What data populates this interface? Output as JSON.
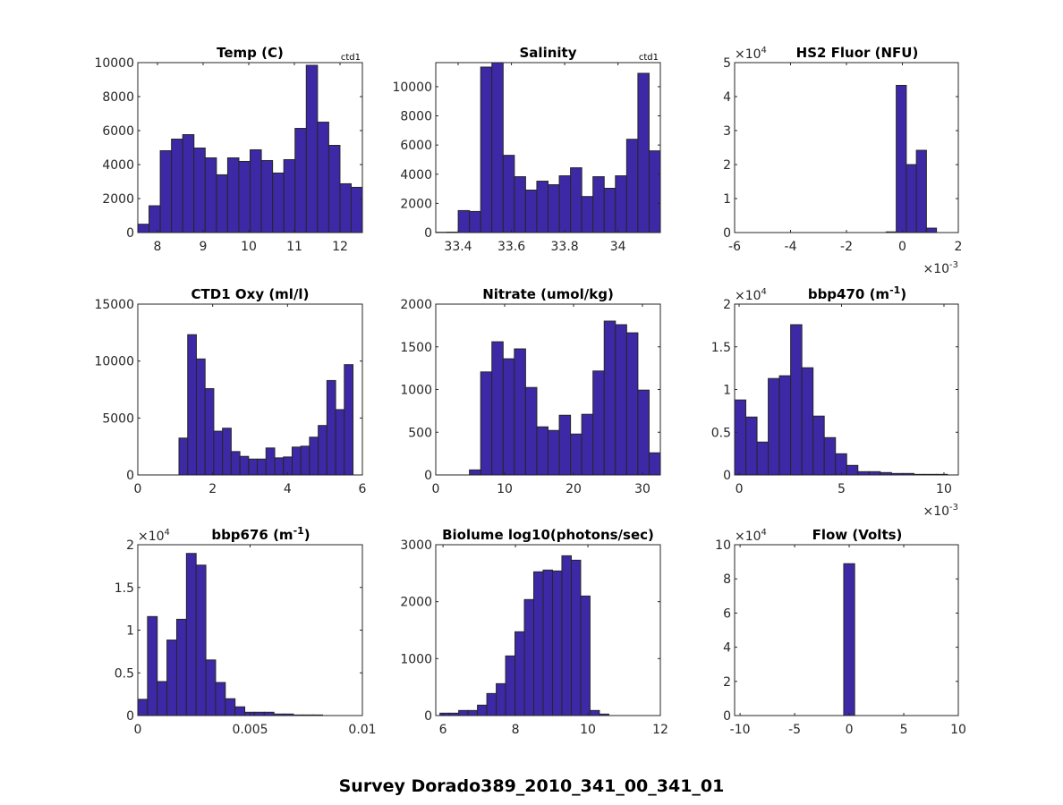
{
  "figure": {
    "suptitle": "Survey Dorado389_2010_341_00_341_01",
    "bar_color": "#3d28a6",
    "edge_color": "#262626",
    "axis_color": "#262626"
  },
  "chart_data": [
    {
      "type": "bar",
      "title": "Temp (C)",
      "corner_label": "ctd1",
      "xlim": [
        7.569,
        12.49
      ],
      "ylim": [
        0,
        10000
      ],
      "xticks": [
        8,
        9,
        10,
        11,
        12
      ],
      "xtick_labels": [
        "8",
        "9",
        "10",
        "11",
        "12"
      ],
      "yticks": [
        0,
        2000,
        4000,
        6000,
        8000,
        10000
      ],
      "ytick_labels": [
        "0",
        "2000",
        "4000",
        "6000",
        "8000",
        "10000"
      ],
      "y_exponent": "",
      "x_exponent": "",
      "bin_start": 7.569,
      "bin_width": 0.2461,
      "values": [
        490,
        1576,
        4816,
        5499,
        5762,
        4974,
        4396,
        3398,
        4396,
        4186,
        4869,
        4238,
        3503,
        4291,
        6130,
        9842,
        6497,
        5131,
        2872,
        2662
      ]
    },
    {
      "type": "bar",
      "title": "Salinity",
      "corner_label": "ctd1",
      "xlim": [
        33.316,
        34.159
      ],
      "ylim": [
        0,
        11650
      ],
      "xticks": [
        33.4,
        33.6,
        33.8,
        34
      ],
      "xtick_labels": [
        "33.4",
        "33.6",
        "33.8",
        "34"
      ],
      "yticks": [
        0,
        2000,
        4000,
        6000,
        8000,
        10000
      ],
      "ytick_labels": [
        "0",
        "2000",
        "4000",
        "6000",
        "8000",
        "10000"
      ],
      "y_exponent": "",
      "x_exponent": "",
      "bin_start": 33.316,
      "bin_width": 0.04215,
      "values": [
        20,
        30,
        1507,
        1446,
        11344,
        11650,
        5295,
        3829,
        2912,
        3523,
        3279,
        3890,
        4440,
        2470,
        3829,
        3035,
        3890,
        6395,
        10916,
        5601
      ]
    },
    {
      "type": "bar",
      "title": "HS2 Fluor (NFU)",
      "corner_label": "",
      "xlim": [
        -6,
        2
      ],
      "ylim": [
        0,
        5
      ],
      "xticks": [
        -6,
        -4,
        -2,
        0,
        2
      ],
      "xtick_labels": [
        "-6",
        "-4",
        "-2",
        "0",
        "2"
      ],
      "yticks": [
        0,
        1,
        2,
        3,
        4,
        5
      ],
      "ytick_labels": [
        "0",
        "1",
        "2",
        "3",
        "4",
        "5"
      ],
      "y_exponent": "4",
      "x_exponent": "-3",
      "bin_start": -0.58,
      "bin_width": 0.36,
      "values": [
        0.02,
        4.33,
        2.0,
        2.42,
        0.13
      ]
    },
    {
      "type": "bar",
      "title": "CTD1 Oxy (ml/l)",
      "corner_label": "",
      "xlim": [
        0,
        6
      ],
      "ylim": [
        0,
        15000
      ],
      "xticks": [
        0,
        2,
        4,
        6
      ],
      "xtick_labels": [
        "0",
        "2",
        "4",
        "6"
      ],
      "yticks": [
        0,
        5000,
        10000,
        15000
      ],
      "ytick_labels": [
        "0",
        "5000",
        "10000",
        "15000"
      ],
      "y_exponent": "",
      "x_exponent": "",
      "bin_start": 1.1,
      "bin_width": 0.2325,
      "values": [
        3237,
        12316,
        10184,
        7579,
        3842,
        4105,
        2053,
        1632,
        1395,
        1395,
        2368,
        1500,
        1579,
        2447,
        2526,
        3316,
        4342,
        8289,
        5737,
        9684
      ]
    },
    {
      "type": "bar",
      "title": "Nitrate (umol/kg)",
      "corner_label": "",
      "xlim": [
        0,
        32.6
      ],
      "ylim": [
        0,
        2000
      ],
      "xticks": [
        0,
        10,
        20,
        30
      ],
      "xtick_labels": [
        "0",
        "10",
        "20",
        "30"
      ],
      "yticks": [
        0,
        500,
        1000,
        1500,
        2000
      ],
      "ytick_labels": [
        "0",
        "500",
        "1000",
        "1500",
        "2000"
      ],
      "y_exponent": "",
      "x_exponent": "",
      "bin_start": 4.89,
      "bin_width": 1.63,
      "values": [
        59,
        1206,
        1559,
        1360,
        1476,
        1024,
        563,
        521,
        699,
        479,
        710,
        1217,
        1801,
        1759,
        1664,
        993,
        259
      ]
    },
    {
      "type": "bar",
      "title": "bbp470 (m",
      "title_sup": "-1",
      "title_end": ")",
      "corner_label": "",
      "xlim": [
        -0.22,
        10.7
      ],
      "ylim": [
        0,
        2
      ],
      "xticks": [
        0,
        5,
        10
      ],
      "xtick_labels": [
        "0",
        "5",
        "10"
      ],
      "yticks": [
        0,
        0.5,
        1,
        1.5,
        2
      ],
      "ytick_labels": [
        "0",
        "0.5",
        "1",
        "1.5",
        "2"
      ],
      "y_exponent": "4",
      "x_exponent": "-3",
      "bin_start": -0.22,
      "bin_width": 0.547,
      "values": [
        0.878,
        0.678,
        0.385,
        1.129,
        1.161,
        1.759,
        1.255,
        0.689,
        0.437,
        0.248,
        0.112,
        0.0385,
        0.0385,
        0.028,
        0.0175,
        0.0175,
        0.007,
        0.007,
        0.007
      ]
    },
    {
      "type": "bar",
      "title": "bbp676 (m",
      "title_sup": "-1",
      "title_end": ")",
      "corner_label": "",
      "xlim": [
        0,
        0.01
      ],
      "ylim": [
        0,
        2
      ],
      "xticks": [
        0,
        0.005,
        0.01
      ],
      "xtick_labels": [
        "0",
        "0.005",
        "0.01"
      ],
      "yticks": [
        0,
        0.5,
        1,
        1.5,
        2
      ],
      "ytick_labels": [
        "0",
        "0.5",
        "1",
        "1.5",
        "2"
      ],
      "y_exponent": "4",
      "x_exponent": "",
      "bin_start": 0,
      "bin_width": 0.000433,
      "values": [
        0.19,
        1.159,
        0.398,
        0.884,
        1.127,
        1.898,
        1.761,
        0.651,
        0.387,
        0.197,
        0.102,
        0.039,
        0.039,
        0.039,
        0.018,
        0.018,
        0.007,
        0.007,
        0.007
      ]
    },
    {
      "type": "bar",
      "title": "Biolume log10(photons/sec)",
      "corner_label": "",
      "xlim": [
        5.8,
        12
      ],
      "ylim": [
        0,
        3000
      ],
      "xticks": [
        6,
        8,
        10,
        12
      ],
      "xtick_labels": [
        "6",
        "8",
        "10",
        "12"
      ],
      "yticks": [
        0,
        1000,
        2000,
        3000
      ],
      "ytick_labels": [
        "0",
        "1000",
        "2000",
        "3000"
      ],
      "y_exponent": "",
      "x_exponent": "",
      "bin_start": 5.915,
      "bin_width": 0.259,
      "values": [
        42,
        42,
        89,
        89,
        183,
        387,
        560,
        1047,
        1471,
        2037,
        2524,
        2555,
        2539,
        2806,
        2728,
        2099,
        89,
        26
      ]
    },
    {
      "type": "bar",
      "title": "Flow (Volts)",
      "corner_label": "",
      "xlim": [
        -10.5,
        10
      ],
      "ylim": [
        0,
        10
      ],
      "xticks": [
        -10,
        -5,
        0,
        5,
        10
      ],
      "xtick_labels": [
        "-10",
        "-5",
        "0",
        "5",
        "10"
      ],
      "yticks": [
        0,
        2,
        4,
        6,
        8,
        10
      ],
      "ytick_labels": [
        "0",
        "2",
        "4",
        "6",
        "8",
        "10"
      ],
      "y_exponent": "4",
      "x_exponent": "",
      "bin_start": -0.5,
      "bin_width": 1.0,
      "values": [
        8.89
      ]
    }
  ]
}
